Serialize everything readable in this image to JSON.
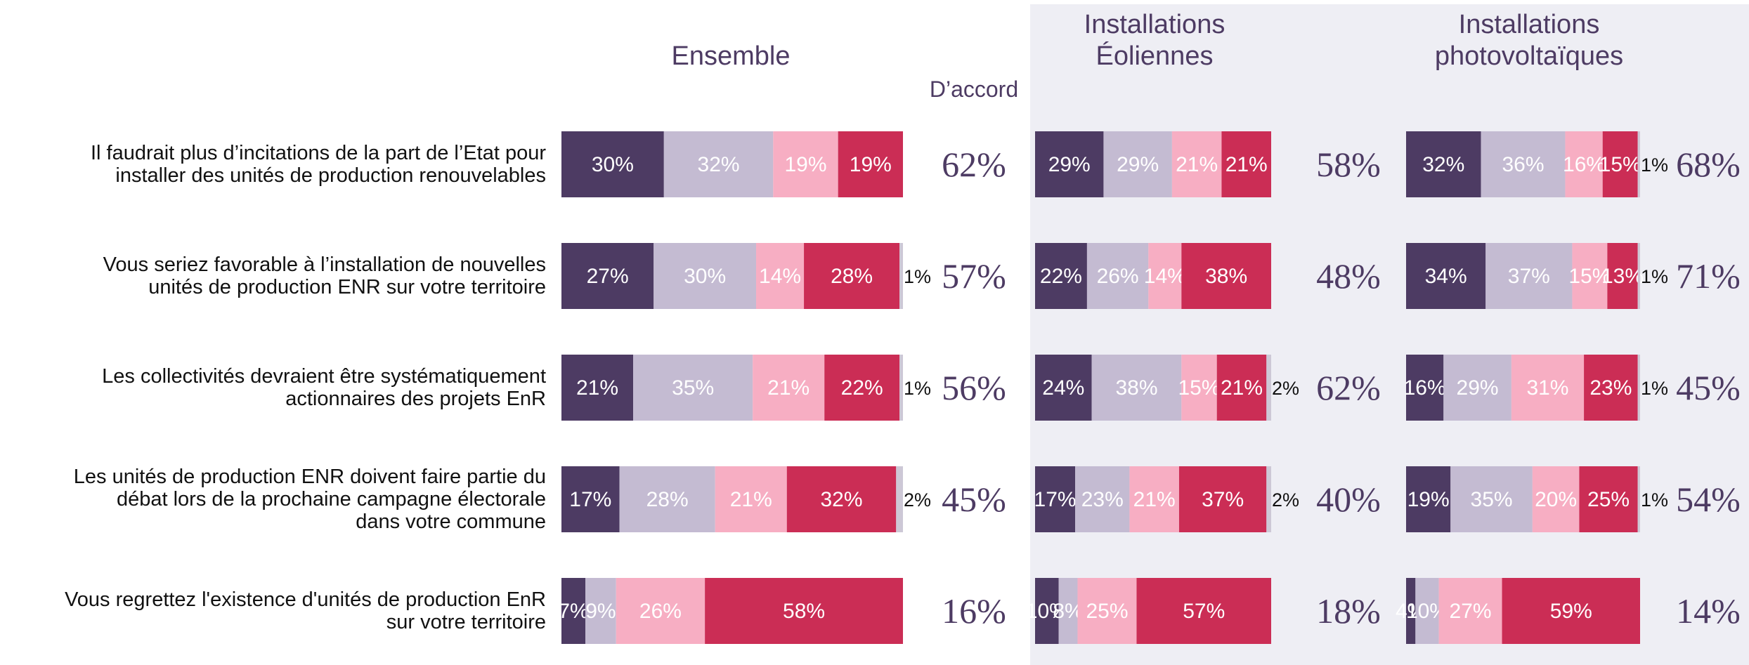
{
  "chart_data": {
    "type": "bar",
    "stacked": true,
    "orientation": "horizontal",
    "agree_header": "D’accord",
    "colors": [
      "#4d3b63",
      "#c4bbd2",
      "#f7aec3",
      "#cb2d55",
      "#cdc8d6"
    ],
    "categories": [
      "Il faudrait plus d’incitations de la part de l’Etat pour installer des unités de production renouvelables",
      "Vous seriez favorable à l’installation de nouvelles unités de production ENR sur votre territoire",
      "Les collectivités devraient être systématiquement actionnaires des projets EnR",
      "Les unités de production ENR doivent faire partie du débat lors de la prochaine campagne électorale dans votre commune",
      "Vous regrettez l'existence d'unités de production EnR sur votre territoire"
    ],
    "category_lines": [
      [
        "Il faudrait plus d’incitations de la part de l’Etat pour",
        "installer des unités de production renouvelables"
      ],
      [
        "Vous seriez favorable à l’installation de nouvelles",
        "unités de production ENR sur votre territoire"
      ],
      [
        "Les collectivités devraient être systématiquement",
        "actionnaires des projets EnR"
      ],
      [
        "Les unités de production ENR doivent faire partie du",
        "débat lors de la prochaine campagne électorale",
        "dans votre commune"
      ],
      [
        "Vous regrettez l'existence d'unités de production EnR",
        "sur votre territoire"
      ]
    ],
    "groups": [
      {
        "title": "Ensemble",
        "values": [
          [
            30,
            32,
            19,
            19,
            0
          ],
          [
            27,
            30,
            14,
            28,
            1
          ],
          [
            21,
            35,
            21,
            22,
            1
          ],
          [
            17,
            28,
            21,
            32,
            2
          ],
          [
            7,
            9,
            26,
            58,
            0
          ]
        ],
        "agree": [
          "62%",
          "57%",
          "56%",
          "45%",
          "16%"
        ]
      },
      {
        "title": "Installations\nÉoliennes",
        "values": [
          [
            29,
            29,
            21,
            21,
            0
          ],
          [
            22,
            26,
            14,
            38,
            0
          ],
          [
            24,
            38,
            15,
            21,
            2
          ],
          [
            17,
            23,
            21,
            37,
            2
          ],
          [
            10,
            8,
            25,
            57,
            0
          ]
        ],
        "agree": [
          "58%",
          "48%",
          "62%",
          "40%",
          "18%"
        ]
      },
      {
        "title": "Installations\nphotovoltaïques",
        "values": [
          [
            32,
            36,
            16,
            15,
            1
          ],
          [
            34,
            37,
            15,
            13,
            1
          ],
          [
            16,
            29,
            31,
            23,
            1
          ],
          [
            19,
            35,
            20,
            25,
            1
          ],
          [
            4,
            10,
            27,
            59,
            0
          ]
        ],
        "agree": [
          "68%",
          "71%",
          "45%",
          "54%",
          "14%"
        ]
      }
    ]
  }
}
